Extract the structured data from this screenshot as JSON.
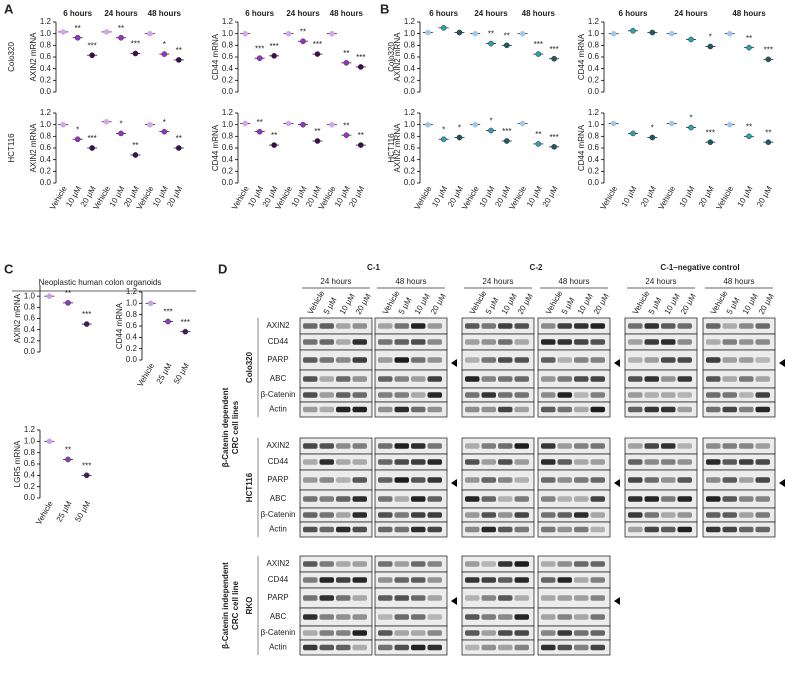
{
  "panel_a": {
    "label": "A",
    "row_labels": [
      "Colo320",
      "HCT116"
    ],
    "colors": [
      "#d6a4ee",
      "#9b30c8",
      "#3f0b55"
    ],
    "plots": [
      {
        "y_label": "AXIN2 mRNA",
        "groups": [
          "6 hours",
          "24 hours",
          "48 hours"
        ],
        "ylim": [
          0,
          1.2
        ],
        "yticks": [
          {
            "value": 0,
            "label": "0.0"
          },
          {
            "value": 0.2,
            "label": "0.2"
          },
          {
            "value": 0.4,
            "label": "0.4"
          },
          {
            "value": 0.6,
            "label": "0.6"
          },
          {
            "value": 0.8,
            "label": "0.8"
          },
          {
            "value": 1,
            "label": "1.0"
          },
          {
            "value": 1.2,
            "label": "1.2"
          }
        ],
        "values": [
          1.03,
          0.93,
          0.63,
          1.03,
          0.93,
          0.66,
          1.0,
          0.65,
          0.55
        ],
        "stars": [
          null,
          "**",
          "***",
          null,
          "**",
          "***",
          null,
          "*",
          "**"
        ]
      },
      {
        "y_label": "CD44 mRNA",
        "groups": [
          "6 hours",
          "24 hours",
          "48 hours"
        ],
        "ylim": [
          0,
          1.2
        ],
        "yticks": [
          {
            "value": 0,
            "label": "0.0"
          },
          {
            "value": 0.2,
            "label": "0.2"
          },
          {
            "value": 0.4,
            "label": "0.4"
          },
          {
            "value": 0.6,
            "label": "0.6"
          },
          {
            "value": 0.8,
            "label": "0.8"
          },
          {
            "value": 1,
            "label": "1.0"
          },
          {
            "value": 1.2,
            "label": "1.2"
          }
        ],
        "values": [
          1.0,
          0.58,
          0.62,
          1.0,
          0.87,
          0.65,
          1.0,
          0.5,
          0.43
        ],
        "stars": [
          null,
          "***",
          "***",
          null,
          "**",
          "***",
          null,
          "**",
          "***"
        ]
      },
      {
        "y_label": "AXIN2 mRNA",
        "ylim": [
          0,
          1.2
        ],
        "yticks": [
          {
            "value": 0,
            "label": "0.0"
          },
          {
            "value": 0.2,
            "label": "0.2"
          },
          {
            "value": 0.4,
            "label": "0.4"
          },
          {
            "value": 0.6,
            "label": "0.6"
          },
          {
            "value": 0.8,
            "label": "0.8"
          },
          {
            "value": 1,
            "label": "1.0"
          },
          {
            "value": 1.2,
            "label": "1.2"
          }
        ],
        "values": [
          1.0,
          0.75,
          0.6,
          1.05,
          0.85,
          0.48,
          1.0,
          0.88,
          0.6
        ],
        "stars": [
          null,
          "*",
          "***",
          null,
          "*",
          "**",
          null,
          "*",
          "**"
        ],
        "categories": [
          "Vehicle",
          "10 μM",
          "20 μM",
          "Vehicle",
          "10 μM",
          "20 μM",
          "Vehicle",
          "10 μM",
          "20 μM"
        ]
      },
      {
        "y_label": "CD44 mRNA",
        "ylim": [
          0,
          1.2
        ],
        "yticks": [
          {
            "value": 0,
            "label": "0.0"
          },
          {
            "value": 0.2,
            "label": "0.2"
          },
          {
            "value": 0.4,
            "label": "0.4"
          },
          {
            "value": 0.6,
            "label": "0.6"
          },
          {
            "value": 0.8,
            "label": "0.8"
          },
          {
            "value": 1,
            "label": "1.0"
          },
          {
            "value": 1.2,
            "label": "1.2"
          }
        ],
        "values": [
          1.02,
          0.88,
          0.65,
          1.02,
          1.0,
          0.72,
          1.0,
          0.82,
          0.65
        ],
        "stars": [
          null,
          "**",
          "**",
          null,
          null,
          "**",
          null,
          "**",
          "**"
        ],
        "categories": [
          "Vehicle",
          "10 μM",
          "20 μM",
          "Vehicle",
          "10 μM",
          "20 μM",
          "Vehicle",
          "10 μM",
          "20 μM"
        ]
      }
    ]
  },
  "panel_b": {
    "label": "B",
    "row_labels": [
      "Colo320",
      "HCT116"
    ],
    "colors": [
      "#9dc8ec",
      "#2aa0b2",
      "#1b5a66"
    ],
    "plots": [
      {
        "y_label": "AXIN2 mRNA",
        "groups": [
          "6 hours",
          "24 hours",
          "48 hours"
        ],
        "ylim": [
          0,
          1.2
        ],
        "yticks": [
          {
            "value": 0,
            "label": "0.0"
          },
          {
            "value": 0.2,
            "label": "0.2"
          },
          {
            "value": 0.4,
            "label": "0.4"
          },
          {
            "value": 0.6,
            "label": "0.6"
          },
          {
            "value": 0.8,
            "label": "0.8"
          },
          {
            "value": 1,
            "label": "1.0"
          },
          {
            "value": 1.2,
            "label": "1.2"
          }
        ],
        "values": [
          1.02,
          1.1,
          1.02,
          1.0,
          0.83,
          0.8,
          1.0,
          0.65,
          0.57
        ],
        "stars": [
          null,
          null,
          null,
          null,
          "**",
          "**",
          null,
          "***",
          "***"
        ]
      },
      {
        "y_label": "CD44 mRNA",
        "groups": [
          "6 hours",
          "24 hours",
          "48 hours"
        ],
        "ylim": [
          0,
          1.2
        ],
        "yticks": [
          {
            "value": 0,
            "label": "0.0"
          },
          {
            "value": 0.2,
            "label": "0.2"
          },
          {
            "value": 0.4,
            "label": "0.4"
          },
          {
            "value": 0.6,
            "label": "0.6"
          },
          {
            "value": 0.8,
            "label": "0.8"
          },
          {
            "value": 1,
            "label": "1.0"
          },
          {
            "value": 1.2,
            "label": "1.2"
          }
        ],
        "values": [
          1.0,
          1.05,
          1.02,
          1.0,
          0.9,
          0.78,
          1.0,
          0.76,
          0.56
        ],
        "stars": [
          null,
          null,
          null,
          null,
          null,
          "*",
          null,
          "**",
          "***"
        ]
      },
      {
        "y_label": "AXIN2 mRNA",
        "ylim": [
          0,
          1.2
        ],
        "yticks": [
          {
            "value": 0,
            "label": "0.0"
          },
          {
            "value": 0.2,
            "label": "0.2"
          },
          {
            "value": 0.4,
            "label": "0.4"
          },
          {
            "value": 0.6,
            "label": "0.6"
          },
          {
            "value": 0.8,
            "label": "0.8"
          },
          {
            "value": 1,
            "label": "1.0"
          },
          {
            "value": 1.2,
            "label": "1.2"
          }
        ],
        "values": [
          1.0,
          0.75,
          0.78,
          1.0,
          0.9,
          0.72,
          1.02,
          0.67,
          0.62
        ],
        "stars": [
          null,
          "*",
          "*",
          null,
          "*",
          "***",
          null,
          "**",
          "***"
        ],
        "categories": [
          "Vehicle",
          "10 μM",
          "20 μM",
          "Vehicle",
          "10 μM",
          "20 μM",
          "Vehicle",
          "10 μM",
          "20 μM"
        ]
      },
      {
        "y_label": "CD44 mRNA",
        "ylim": [
          0,
          1.2
        ],
        "yticks": [
          {
            "value": 0,
            "label": "0.0"
          },
          {
            "value": 0.2,
            "label": "0.2"
          },
          {
            "value": 0.4,
            "label": "0.4"
          },
          {
            "value": 0.6,
            "label": "0.6"
          },
          {
            "value": 0.8,
            "label": "0.8"
          },
          {
            "value": 1,
            "label": "1.0"
          },
          {
            "value": 1.2,
            "label": "1.2"
          }
        ],
        "values": [
          1.02,
          0.85,
          0.78,
          1.02,
          0.95,
          0.7,
          1.0,
          0.8,
          0.7
        ],
        "stars": [
          null,
          null,
          "*",
          null,
          "*",
          "***",
          null,
          "**",
          "**"
        ],
        "categories": [
          "Vehicle",
          "10 μM",
          "20 μM",
          "Vehicle",
          "10 μM",
          "20 μM",
          "Vehicle",
          "10 μM",
          "20 μM"
        ]
      }
    ]
  },
  "panel_c": {
    "label": "C",
    "title": "Neoplastic human colon organoids",
    "colors": [
      "#c9a0ea",
      "#8e3bbd",
      "#4a1566"
    ],
    "plots": [
      {
        "y_label": "AXIN2 mRNA",
        "ylim": [
          0,
          1.2
        ],
        "yticks": [
          {
            "value": 0,
            "label": "0.0"
          },
          {
            "value": 0.2,
            "label": "0.2"
          },
          {
            "value": 0.4,
            "label": "0.4"
          },
          {
            "value": 0.6,
            "label": "0.6"
          },
          {
            "value": 0.8,
            "label": "0.8"
          },
          {
            "value": 1,
            "label": "1.0"
          }
        ],
        "values": [
          1.0,
          0.88,
          0.5
        ],
        "stars": [
          null,
          "**",
          "***"
        ]
      },
      {
        "y_label": "CD44 mRNA",
        "ylim": [
          0,
          1.2
        ],
        "yticks": [
          {
            "value": 0,
            "label": "0.0"
          },
          {
            "value": 0.2,
            "label": "0.2"
          },
          {
            "value": 0.4,
            "label": "0.4"
          },
          {
            "value": 0.6,
            "label": "0.6"
          },
          {
            "value": 0.8,
            "label": "0.8"
          },
          {
            "value": 1,
            "label": "1.0"
          },
          {
            "value": 1.2,
            "label": "1.2"
          }
        ],
        "values": [
          1.0,
          0.68,
          0.5
        ],
        "stars": [
          null,
          "***",
          "***"
        ],
        "categories": [
          "Vehicle",
          "25 μM",
          "50 μM"
        ]
      },
      {
        "y_label": "LGR5 mRNA",
        "ylim": [
          0,
          1.2
        ],
        "yticks": [
          {
            "value": 0,
            "label": "0.0"
          },
          {
            "value": 0.2,
            "label": "0.2"
          },
          {
            "value": 0.4,
            "label": "0.4"
          },
          {
            "value": 0.6,
            "label": "0.6"
          },
          {
            "value": 0.8,
            "label": "0.8"
          },
          {
            "value": 1,
            "label": "1.0"
          },
          {
            "value": 1.2,
            "label": "1.2"
          }
        ],
        "values": [
          1.0,
          0.68,
          0.4
        ],
        "stars": [
          null,
          "**",
          "***"
        ],
        "categories": [
          "Vehicle",
          "25 μM",
          "50 μM"
        ]
      }
    ]
  },
  "panel_d": {
    "label": "D",
    "treatments": [
      {
        "name": "C-1",
        "color": "#c22ccb"
      },
      {
        "name": "C-2",
        "color": "#19a9b8"
      },
      {
        "name": "C-1–negative control",
        "color": "#38b34a"
      }
    ],
    "timepoints": [
      "24 hours",
      "48 hours"
    ],
    "lanes": [
      "Vehicle",
      "5 μM",
      "10 μM",
      "20 μM"
    ],
    "proteins": [
      "AXIN2",
      "CD44",
      "PARP",
      "ABC",
      "β-Catenin",
      "Actin"
    ],
    "groups": [
      {
        "label": [
          "β-Catenin dependent",
          "CRC cell lines"
        ],
        "cell_lines": [
          {
            "name": "Colo320",
            "treatments": [
              "C-1",
              "C-2",
              "C-1–negative control"
            ]
          },
          {
            "name": "HCT116",
            "treatments": [
              "C-1",
              "C-2",
              "C-1–negative control"
            ]
          }
        ]
      },
      {
        "label": [
          "β-Catenin independent",
          "CRC cell line"
        ],
        "cell_lines": [
          {
            "name": "RKO",
            "treatments": [
              "C-1",
              "C-2"
            ]
          }
        ]
      }
    ]
  }
}
